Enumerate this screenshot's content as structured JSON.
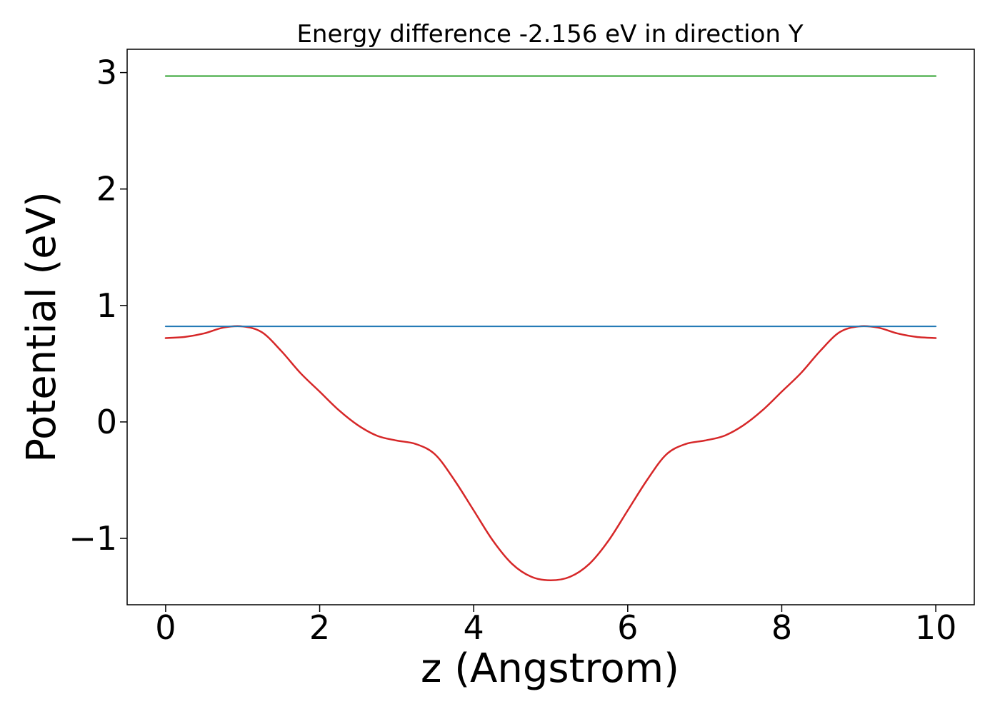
{
  "chart_data": {
    "type": "line",
    "title": "Energy difference -2.156 eV in direction Y",
    "xlabel": "z (Angstrom)",
    "ylabel": "Potential (eV)",
    "xlim": [
      -0.5,
      10.5
    ],
    "ylim": [
      -1.57,
      3.2
    ],
    "xticks": [
      0,
      2,
      4,
      6,
      8,
      10
    ],
    "xtick_labels": [
      "0",
      "2",
      "4",
      "6",
      "8",
      "10"
    ],
    "yticks": [
      -1,
      0,
      1,
      2,
      3
    ],
    "ytick_labels": [
      "−1",
      "0",
      "1",
      "2",
      "3"
    ],
    "grid": false,
    "series": [
      {
        "color": "#d62728",
        "x": [
          0,
          0.25,
          0.5,
          0.75,
          1.0,
          1.25,
          1.5,
          1.75,
          2.0,
          2.25,
          2.5,
          2.75,
          3.0,
          3.25,
          3.5,
          3.75,
          4.0,
          4.25,
          4.5,
          4.75,
          5.0,
          5.25,
          5.5,
          5.75,
          6.0,
          6.25,
          6.5,
          6.75,
          7.0,
          7.25,
          7.5,
          7.75,
          8.0,
          8.25,
          8.5,
          8.75,
          9.0,
          9.25,
          9.5,
          9.75,
          10.0
        ],
        "y": [
          0.72,
          0.73,
          0.76,
          0.81,
          0.82,
          0.77,
          0.61,
          0.42,
          0.26,
          0.1,
          -0.03,
          -0.12,
          -0.16,
          -0.19,
          -0.28,
          -0.5,
          -0.76,
          -1.02,
          -1.22,
          -1.33,
          -1.36,
          -1.33,
          -1.22,
          -1.02,
          -0.76,
          -0.5,
          -0.28,
          -0.19,
          -0.16,
          -0.12,
          -0.03,
          0.1,
          0.26,
          0.42,
          0.61,
          0.77,
          0.82,
          0.81,
          0.76,
          0.73,
          0.72
        ]
      },
      {
        "color": "#1f77b4",
        "x": [
          0,
          10
        ],
        "y": [
          0.82,
          0.82
        ]
      },
      {
        "color": "#2ca02c",
        "x": [
          0,
          10
        ],
        "y": [
          2.97,
          2.97
        ]
      }
    ]
  }
}
